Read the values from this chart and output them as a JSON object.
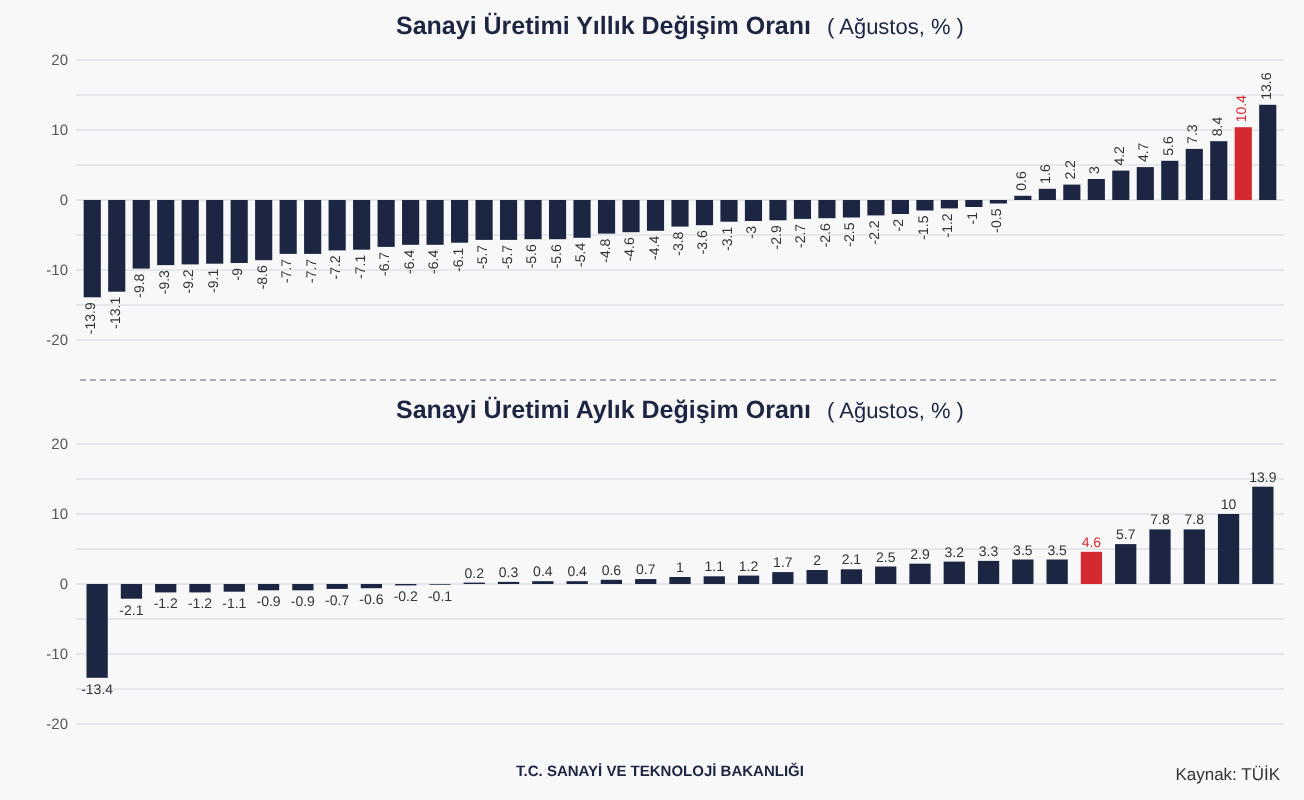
{
  "chart_data": [
    {
      "type": "bar",
      "title": "Sanayi Üretimi Yıllık Değişim Oranı",
      "subtitle": "( Ağustos, % )",
      "categories": [
        null,
        null,
        null,
        null,
        null,
        null,
        null,
        null,
        null,
        null,
        null,
        null,
        null,
        null,
        null,
        null,
        null,
        null,
        null,
        null,
        null,
        null,
        null,
        null,
        null,
        null,
        null,
        null,
        null,
        null,
        null,
        null,
        null,
        null,
        null,
        null,
        null,
        null,
        null,
        null,
        null,
        null,
        null,
        null,
        null,
        null,
        null,
        null,
        null
      ],
      "values": [
        -13.9,
        -13.1,
        -9.8,
        -9.3,
        -9.2,
        -9.1,
        -9,
        -8.6,
        -7.7,
        -7.7,
        -7.2,
        -7.1,
        -6.7,
        -6.4,
        -6.4,
        -6.1,
        -5.7,
        -5.7,
        -5.6,
        -5.6,
        -5.4,
        -4.8,
        -4.6,
        -4.4,
        -3.8,
        -3.6,
        -3.1,
        -3,
        -2.9,
        -2.7,
        -2.6,
        -2.5,
        -2.2,
        -2,
        -1.5,
        -1.2,
        -1,
        -0.5,
        0.6,
        1.6,
        2.2,
        3,
        4.2,
        4.7,
        5.6,
        7.3,
        8.4,
        10.4,
        13.6
      ],
      "colors": [
        "#1c2541",
        "#1c2541",
        "#1c2541",
        "#1c2541",
        "#1c2541",
        "#1c2541",
        "#1c2541",
        "#1c2541",
        "#1c2541",
        "#1c2541",
        "#1c2541",
        "#1c2541",
        "#1c2541",
        "#1c2541",
        "#1c2541",
        "#1c2541",
        "#1c2541",
        "#1c2541",
        "#1c2541",
        "#1c2541",
        "#1c2541",
        "#1c2541",
        "#1c2541",
        "#1c2541",
        "#1c2541",
        "#1c2541",
        "#1c2541",
        "#1c2541",
        "#1c2541",
        "#1c2541",
        "#1c2541",
        "#1c2541",
        "#1c2541",
        "#1c2541",
        "#1c2541",
        "#1c2541",
        "#1c2541",
        "#1c2541",
        "#1c2541",
        "#1c2541",
        "#1c2541",
        "#1c2541",
        "#1c2541",
        "#1c2541",
        "#1c2541",
        "#1c2541",
        "#1c2541",
        "#d42a2f",
        "#1c2541"
      ],
      "ylim": [
        -20,
        20
      ],
      "yticks": [
        20,
        {
          "value": 15,
          "label": null
        },
        10,
        {
          "value": 5,
          "label": null
        },
        0,
        {
          "value": -5,
          "label": null
        },
        -10,
        {
          "value": -15,
          "label": null
        },
        -20
      ],
      "grid": "y",
      "data_labels": true
    },
    {
      "type": "bar",
      "title": "Sanayi Üretimi Aylık Değişim Oranı",
      "subtitle": "( Ağustos, % )",
      "categories": [
        null,
        null,
        null,
        null,
        null,
        null,
        null,
        null,
        null,
        null,
        null,
        null,
        null,
        null,
        null,
        null,
        null,
        null,
        null,
        null,
        null,
        null,
        null,
        null,
        null,
        null,
        null,
        null,
        null,
        null,
        null,
        null,
        null,
        null,
        null
      ],
      "values": [
        -13.4,
        -2.1,
        -1.2,
        -1.2,
        -1.1,
        -0.9,
        -0.9,
        -0.7,
        -0.6,
        -0.2,
        -0.1,
        0.2,
        0.3,
        0.4,
        0.4,
        0.6,
        0.7,
        1,
        1.1,
        1.2,
        1.7,
        2,
        2.1,
        2.5,
        2.9,
        3.2,
        3.3,
        3.5,
        3.5,
        4.6,
        5.7,
        7.8,
        7.8,
        10,
        13.9
      ],
      "colors": [
        "#1c2541",
        "#1c2541",
        "#1c2541",
        "#1c2541",
        "#1c2541",
        "#1c2541",
        "#1c2541",
        "#1c2541",
        "#1c2541",
        "#1c2541",
        "#1c2541",
        "#1c2541",
        "#1c2541",
        "#1c2541",
        "#1c2541",
        "#1c2541",
        "#1c2541",
        "#1c2541",
        "#1c2541",
        "#1c2541",
        "#1c2541",
        "#1c2541",
        "#1c2541",
        "#1c2541",
        "#1c2541",
        "#1c2541",
        "#1c2541",
        "#1c2541",
        "#1c2541",
        "#d42a2f",
        "#1c2541",
        "#1c2541",
        "#1c2541",
        "#1c2541",
        "#1c2541"
      ],
      "ylim": [
        -20,
        20
      ],
      "yticks": [
        20,
        {
          "value": 15,
          "label": null
        },
        10,
        {
          "value": 5,
          "label": null
        },
        0,
        {
          "value": -5,
          "label": null
        },
        -10,
        {
          "value": -15,
          "label": null
        },
        -20
      ],
      "grid": "y",
      "data_labels": true,
      "annotations": [
        "T.C. SANAYİ VE TEKNOLOJİ BAKANLIĞI",
        "Kaynak: TÜİK"
      ]
    }
  ]
}
